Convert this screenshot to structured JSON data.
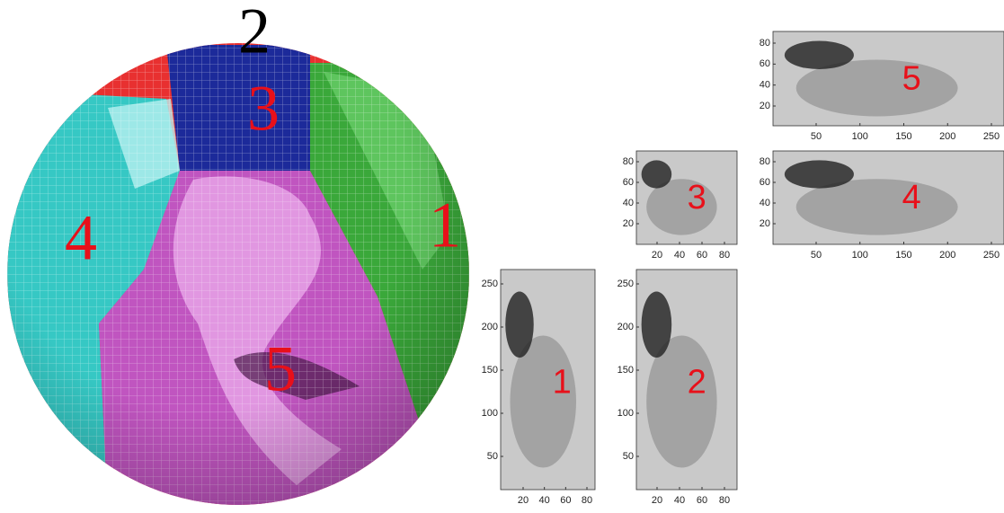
{
  "globe": {
    "face_labels": [
      "2",
      "3",
      "4",
      "1",
      "5"
    ]
  },
  "panels": [
    {
      "label": "5",
      "yticks": [
        80,
        60,
        40,
        20
      ],
      "xticks": [
        50,
        100,
        150,
        200,
        250
      ]
    },
    {
      "label": "3",
      "yticks": [
        80,
        60,
        40,
        20
      ],
      "xticks": [
        20,
        40,
        60,
        80
      ]
    },
    {
      "label": "4",
      "yticks": [
        80,
        60,
        40,
        20
      ],
      "xticks": [
        50,
        100,
        150,
        200,
        250
      ]
    },
    {
      "label": "1",
      "yticks": [
        250,
        200,
        150,
        100,
        50
      ],
      "xticks": [
        20,
        40,
        60,
        80
      ]
    },
    {
      "label": "2",
      "yticks": [
        250,
        200,
        150,
        100,
        50
      ],
      "xticks": [
        20,
        40,
        60,
        80
      ]
    }
  ]
}
